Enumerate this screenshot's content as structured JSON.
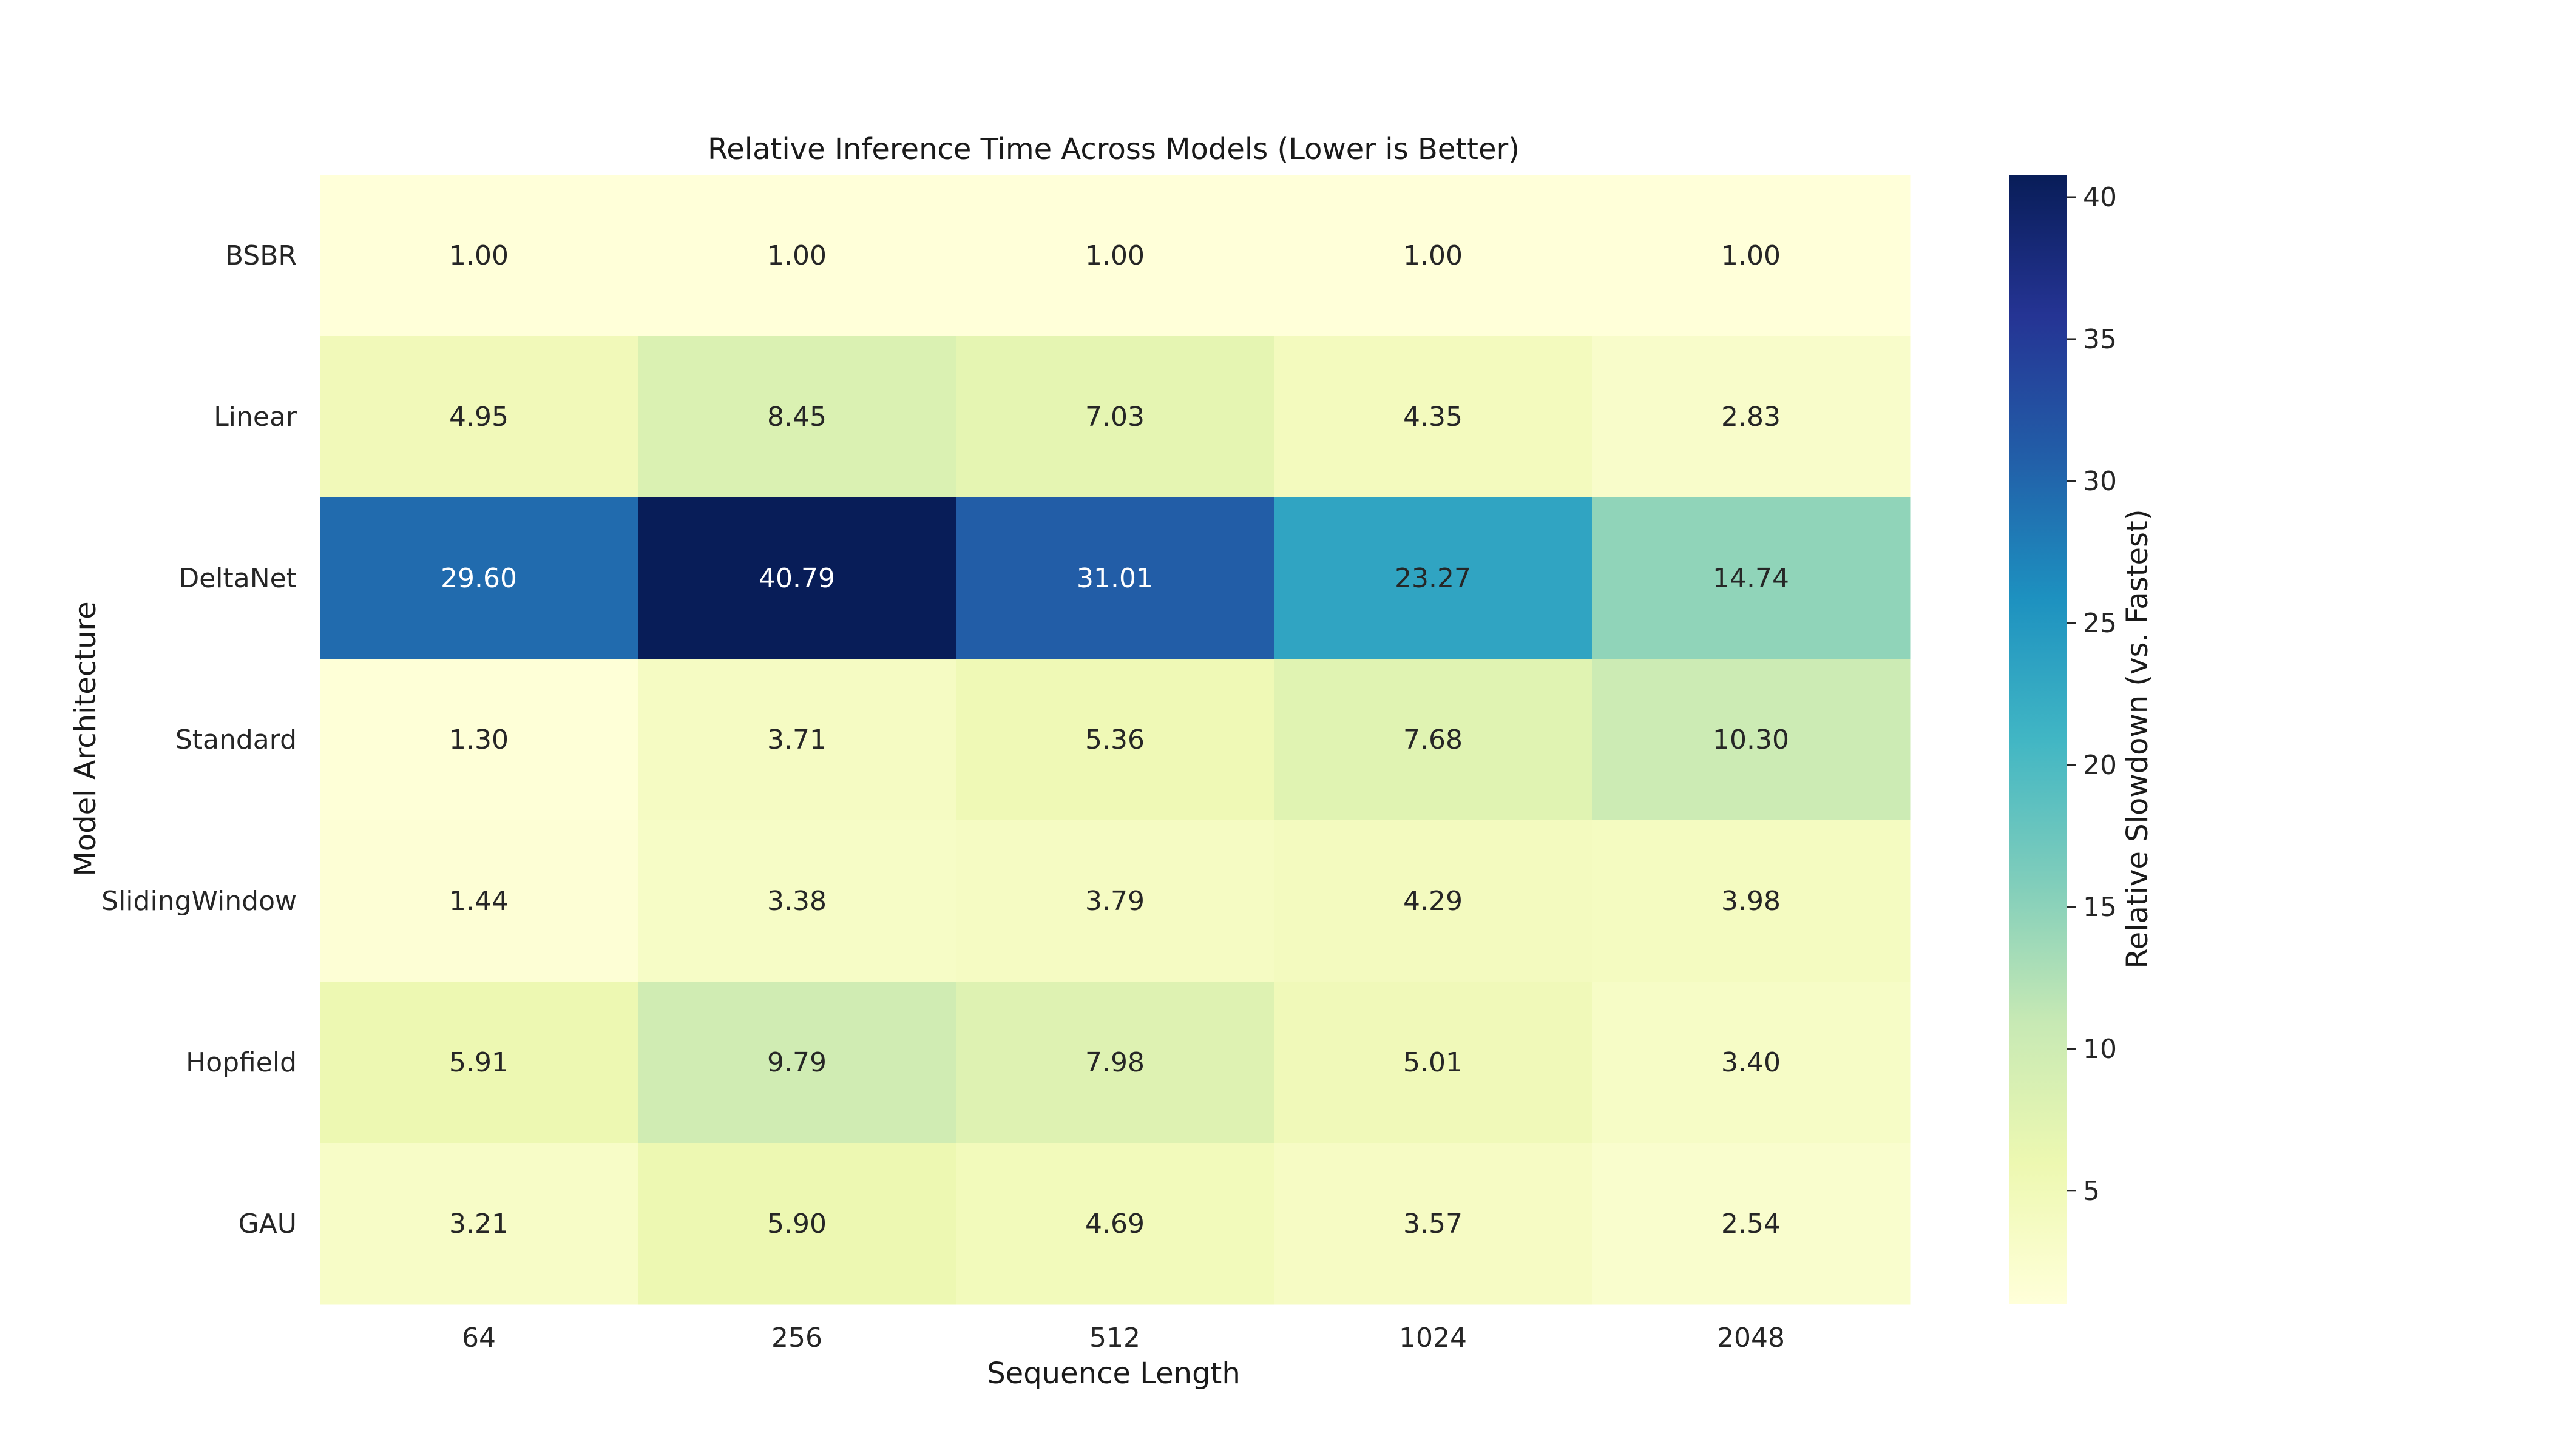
{
  "chart_data": {
    "type": "heatmap",
    "title": "Relative Inference Time Across Models (Lower is Better)",
    "xlabel": "Sequence Length",
    "ylabel": "Model Architecture",
    "x_categories": [
      "64",
      "256",
      "512",
      "1024",
      "2048"
    ],
    "y_categories": [
      "BSBR",
      "Linear",
      "DeltaNet",
      "Standard",
      "SlidingWindow",
      "Hopfield",
      "GAU"
    ],
    "values": [
      [
        1.0,
        1.0,
        1.0,
        1.0,
        1.0
      ],
      [
        4.95,
        8.45,
        7.03,
        4.35,
        2.83
      ],
      [
        29.6,
        40.79,
        31.01,
        23.27,
        14.74
      ],
      [
        1.3,
        3.71,
        5.36,
        7.68,
        10.3
      ],
      [
        1.44,
        3.38,
        3.79,
        4.29,
        3.98
      ],
      [
        5.91,
        9.79,
        7.98,
        5.01,
        3.4
      ],
      [
        3.21,
        5.9,
        4.69,
        3.57,
        2.54
      ]
    ],
    "value_format": "2 decimals",
    "colormap": "YlGnBu",
    "colormap_stops": [
      "#ffffd9",
      "#edf8b1",
      "#c7e9b4",
      "#7fcdbb",
      "#41b6c4",
      "#1d91c0",
      "#225ea8",
      "#253494",
      "#081d58"
    ],
    "color_range": [
      1.0,
      40.79
    ],
    "colorbar": {
      "label": "Relative Slowdown (vs. Fastest)",
      "ticks": [
        5,
        10,
        15,
        20,
        25,
        30,
        35,
        40
      ]
    },
    "grid": false,
    "legend": "colorbar-right"
  }
}
